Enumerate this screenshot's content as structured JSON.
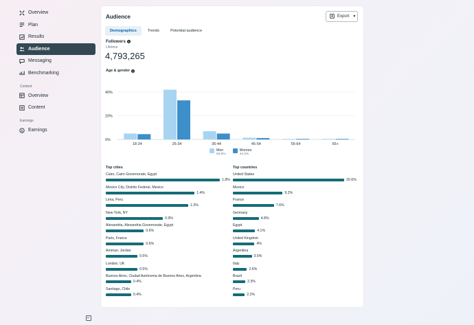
{
  "sidebar": {
    "items": [
      {
        "label": "Overview",
        "icon": "overview-icon",
        "active": false
      },
      {
        "label": "Plan",
        "icon": "plan-icon",
        "active": false
      },
      {
        "label": "Results",
        "icon": "results-icon",
        "active": false
      },
      {
        "label": "Audience",
        "icon": "audience-icon",
        "active": true
      },
      {
        "label": "Messaging",
        "icon": "messaging-icon",
        "active": false
      },
      {
        "label": "Benchmarking",
        "icon": "benchmarking-icon",
        "active": false
      }
    ],
    "content_section": "Content",
    "content_items": [
      {
        "label": "Overview",
        "icon": "content-overview-icon"
      },
      {
        "label": "Content",
        "icon": "content-icon"
      }
    ],
    "earnings_section": "Earnings",
    "earnings_items": [
      {
        "label": "Earnings",
        "icon": "earnings-icon"
      }
    ]
  },
  "card": {
    "title": "Audience",
    "export_label": "Export",
    "tabs": [
      "Demographics",
      "Trends",
      "Potential audience"
    ],
    "active_tab": 0,
    "followers_label": "Followers",
    "lifetime_label": "Lifetime",
    "followers_value": "4,793,265",
    "age_gender_label": "Age & gender"
  },
  "chart_data": {
    "type": "bar",
    "categories": [
      "18-24",
      "25-34",
      "35-44",
      "45-54",
      "55-64",
      "65+"
    ],
    "series": [
      {
        "name": "Men",
        "values": [
          5.0,
          42.0,
          7.0,
          1.5,
          0.5,
          0.5
        ],
        "color": "#a8d4f2"
      },
      {
        "name": "Women",
        "values": [
          4.5,
          33.0,
          5.0,
          1.2,
          0.5,
          0.5
        ],
        "color": "#3d8fca"
      }
    ],
    "y_ticks": [
      "0%",
      "20%",
      "40%"
    ],
    "ylim": [
      0,
      50
    ],
    "legend_pcts": [
      "55.8%",
      "44.2%"
    ],
    "grid": true,
    "legend": "bottom"
  },
  "top_cities": {
    "title": "Top cities",
    "items": [
      {
        "name": "Cairo, Cairo Governorate, Egypt",
        "pct": "1.8%",
        "value": 1.8
      },
      {
        "name": "Mexico City, Distrito Federal, Mexico",
        "pct": "1.4%",
        "value": 1.4
      },
      {
        "name": "Lima, Peru",
        "pct": "1.3%",
        "value": 1.3
      },
      {
        "name": "New York, NY",
        "pct": "0.9%",
        "value": 0.9
      },
      {
        "name": "Alexandria, Alexandria Governorate, Egypt",
        "pct": "0.6%",
        "value": 0.6
      },
      {
        "name": "Paris, France",
        "pct": "0.6%",
        "value": 0.6
      },
      {
        "name": "Amman, Jordan",
        "pct": "0.5%",
        "value": 0.5
      },
      {
        "name": "London, UK",
        "pct": "0.5%",
        "value": 0.5
      },
      {
        "name": "Buenos Aires, Ciudad Autónoma de Buenos Aires, Argentina",
        "pct": "0.4%",
        "value": 0.4
      },
      {
        "name": "Santiago, Chile",
        "pct": "0.4%",
        "value": 0.4
      }
    ]
  },
  "top_countries": {
    "title": "Top countries",
    "items": [
      {
        "name": "United States",
        "pct": "20.6%",
        "value": 20.6
      },
      {
        "name": "Mexico",
        "pct": "9.2%",
        "value": 9.2
      },
      {
        "name": "France",
        "pct": "7.6%",
        "value": 7.6
      },
      {
        "name": "Germany",
        "pct": "4.8%",
        "value": 4.8
      },
      {
        "name": "Egypt",
        "pct": "4.1%",
        "value": 4.1
      },
      {
        "name": "United Kingdom",
        "pct": "4%",
        "value": 4.0
      },
      {
        "name": "Argentina",
        "pct": "3.5%",
        "value": 3.5
      },
      {
        "name": "Italy",
        "pct": "2.6%",
        "value": 2.6
      },
      {
        "name": "Brazil",
        "pct": "2.3%",
        "value": 2.3
      },
      {
        "name": "Peru",
        "pct": "2.2%",
        "value": 2.2
      }
    ]
  }
}
